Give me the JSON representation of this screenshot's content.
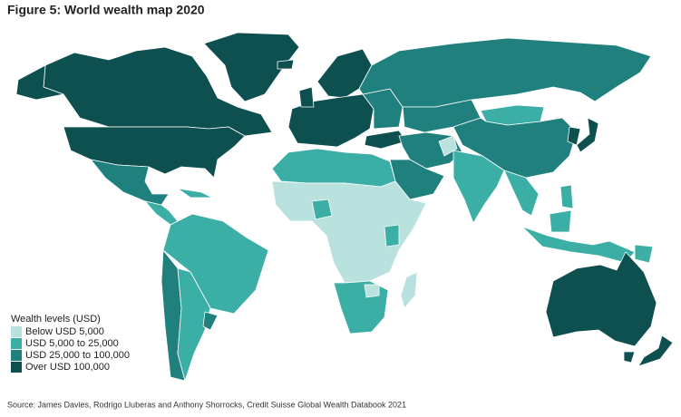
{
  "title": "Figure 5: World wealth map 2020",
  "legend": {
    "title": "Wealth levels (USD)",
    "items": [
      {
        "label": "Below USD 5,000",
        "color": "#b9e1dd"
      },
      {
        "label": "USD 5,000 to 25,000",
        "color": "#3bafa6"
      },
      {
        "label": "USD 25,000 to 100,000",
        "color": "#1f807d"
      },
      {
        "label": "Over USD 100,000",
        "color": "#0e4f50"
      }
    ]
  },
  "source": "Source: James Davies, Rodrigo Lluberas and Anthony Shorrocks, Credit Suisse Global Wealth Databook 2021"
}
